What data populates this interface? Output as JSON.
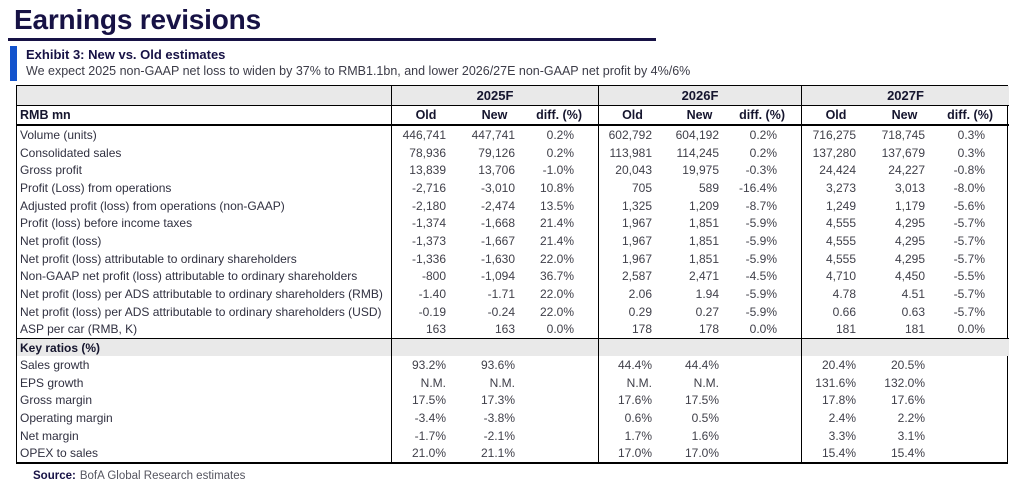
{
  "page": {
    "title": "Earnings revisions"
  },
  "exhibit": {
    "title": "Exhibit 3: New vs. Old estimates",
    "subtitle": "We expect 2025 non-GAAP net loss to widen by 37% to RMB1.1bn, and lower 2026/27E non-GAAP net profit by 4%/6%"
  },
  "colors": {
    "title_navy": "#171245",
    "accent_blue": "#1353cd",
    "band_gray": "#e9e9e9",
    "border_black": "#000000"
  },
  "table": {
    "row_header": "RMB mn",
    "groups": [
      {
        "label": "2025F"
      },
      {
        "label": "2026F"
      },
      {
        "label": "2027F"
      }
    ],
    "col_headers": [
      "Old",
      "New",
      "diff. (%)"
    ],
    "rows": [
      {
        "label": "Volume (units)",
        "cells": [
          "446,741",
          "447,741",
          "0.2%",
          "602,792",
          "604,192",
          "0.2%",
          "716,275",
          "718,745",
          "0.3%"
        ]
      },
      {
        "label": "Consolidated sales",
        "cells": [
          "78,936",
          "79,126",
          "0.2%",
          "113,981",
          "114,245",
          "0.2%",
          "137,280",
          "137,679",
          "0.3%"
        ]
      },
      {
        "label": "Gross profit",
        "cells": [
          "13,839",
          "13,706",
          "-1.0%",
          "20,043",
          "19,975",
          "-0.3%",
          "24,424",
          "24,227",
          "-0.8%"
        ]
      },
      {
        "label": "Profit (Loss) from operations",
        "cells": [
          "-2,716",
          "-3,010",
          "10.8%",
          "705",
          "589",
          "-16.4%",
          "3,273",
          "3,013",
          "-8.0%"
        ]
      },
      {
        "label": "Adjusted profit (loss) from operations (non-GAAP)",
        "cells": [
          "-2,180",
          "-2,474",
          "13.5%",
          "1,325",
          "1,209",
          "-8.7%",
          "1,249",
          "1,179",
          "-5.6%"
        ]
      },
      {
        "label": "Profit (loss) before income taxes",
        "cells": [
          "-1,374",
          "-1,668",
          "21.4%",
          "1,967",
          "1,851",
          "-5.9%",
          "4,555",
          "4,295",
          "-5.7%"
        ]
      },
      {
        "label": "Net profit (loss)",
        "cells": [
          "-1,373",
          "-1,667",
          "21.4%",
          "1,967",
          "1,851",
          "-5.9%",
          "4,555",
          "4,295",
          "-5.7%"
        ]
      },
      {
        "label": "Net profit (loss)  attributable to ordinary shareholders",
        "cells": [
          "-1,336",
          "-1,630",
          "22.0%",
          "1,967",
          "1,851",
          "-5.9%",
          "4,555",
          "4,295",
          "-5.7%"
        ]
      },
      {
        "label": "Non-GAAP net profit (loss) attributable to ordinary shareholders",
        "cells": [
          "-800",
          "-1,094",
          "36.7%",
          "2,587",
          "2,471",
          "-4.5%",
          "4,710",
          "4,450",
          "-5.5%"
        ]
      },
      {
        "label": "Net profit (loss) per ADS attributable to ordinary shareholders (RMB)",
        "cells": [
          "-1.40",
          "-1.71",
          "22.0%",
          "2.06",
          "1.94",
          "-5.9%",
          "4.78",
          "4.51",
          "-5.7%"
        ]
      },
      {
        "label": "Net profit (loss) per ADS attributable to ordinary shareholders (USD)",
        "cells": [
          "-0.19",
          "-0.24",
          "22.0%",
          "0.29",
          "0.27",
          "-5.9%",
          "0.66",
          "0.63",
          "-5.7%"
        ]
      },
      {
        "label": "ASP per car (RMB, K)",
        "cells": [
          "163",
          "163",
          "0.0%",
          "178",
          "178",
          "0.0%",
          "181",
          "181",
          "0.0%"
        ]
      }
    ],
    "section_label": "Key ratios (%)",
    "ratio_rows": [
      {
        "label": "Sales growth",
        "cells": [
          "93.2%",
          "93.6%",
          "",
          "44.4%",
          "44.4%",
          "",
          "20.4%",
          "20.5%",
          ""
        ]
      },
      {
        "label": "EPS growth",
        "cells": [
          "N.M.",
          "N.M.",
          "",
          "N.M.",
          "N.M.",
          "",
          "131.6%",
          "132.0%",
          ""
        ]
      },
      {
        "label": "Gross margin",
        "cells": [
          "17.5%",
          "17.3%",
          "",
          "17.6%",
          "17.5%",
          "",
          "17.8%",
          "17.6%",
          ""
        ]
      },
      {
        "label": "Operating margin",
        "cells": [
          "-3.4%",
          "-3.8%",
          "",
          "0.6%",
          "0.5%",
          "",
          "2.4%",
          "2.2%",
          ""
        ]
      },
      {
        "label": "Net margin",
        "cells": [
          "-1.7%",
          "-2.1%",
          "",
          "1.7%",
          "1.6%",
          "",
          "3.3%",
          "3.1%",
          ""
        ]
      },
      {
        "label": "OPEX to sales",
        "cells": [
          "21.0%",
          "21.1%",
          "",
          "17.0%",
          "17.0%",
          "",
          "15.4%",
          "15.4%",
          ""
        ]
      }
    ]
  },
  "source": {
    "label": "Source:",
    "text": "BofA Global Research estimates"
  }
}
